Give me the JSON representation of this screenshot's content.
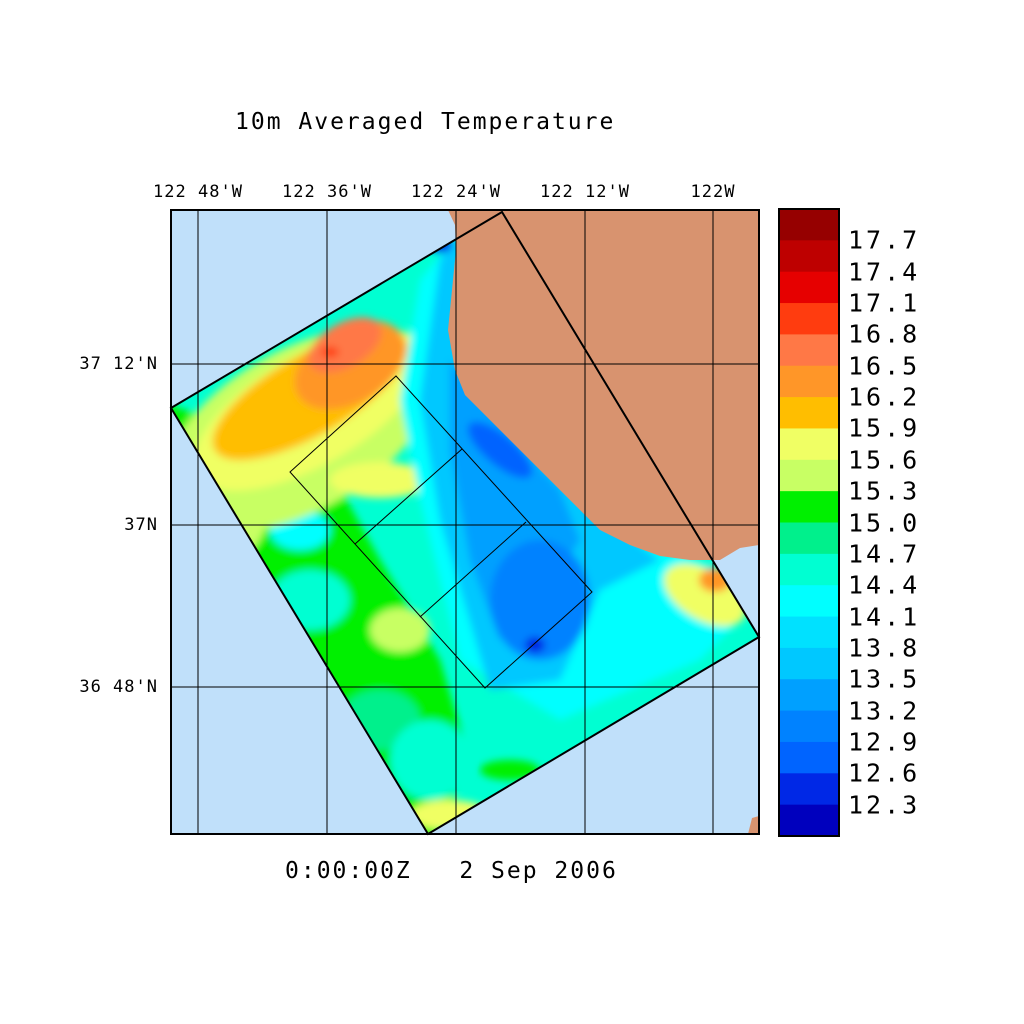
{
  "title": "10m Averaged Temperature",
  "time_label": "0:00:00Z   2 Sep 2006",
  "lon_labels": [
    "122 48'W",
    "122 36'W",
    "122 24'W",
    "122 12'W",
    "122W"
  ],
  "lat_labels": [
    "37 12'N",
    "37N",
    "36 48'N"
  ],
  "colors": {
    "ocean_outside": "#c0e0fa",
    "land": "#d8936f"
  },
  "colorbar": {
    "labels": [
      "17.7",
      "17.4",
      "17.1",
      "16.8",
      "16.5",
      "16.2",
      "15.9",
      "15.6",
      "15.3",
      "15.0",
      "14.7",
      "14.4",
      "14.1",
      "13.8",
      "13.5",
      "13.2",
      "12.9",
      "12.6",
      "12.3"
    ],
    "colors": [
      "#960000",
      "#be0000",
      "#e60000",
      "#ff3c0f",
      "#ff7846",
      "#ff9628",
      "#ffbe00",
      "#f0ff64",
      "#c8ff64",
      "#00f000",
      "#00f08c",
      "#00ffd2",
      "#00ffff",
      "#00e1ff",
      "#00c8ff",
      "#00a0ff",
      "#0082ff",
      "#0064ff",
      "#0028e6",
      "#0000be"
    ]
  },
  "chart_data": {
    "type": "heatmap",
    "title": "10m Averaged Temperature",
    "variable": "Temperature",
    "levels": [
      12.3,
      12.6,
      12.9,
      13.2,
      13.5,
      13.8,
      14.1,
      14.4,
      14.7,
      15.0,
      15.3,
      15.6,
      15.9,
      16.2,
      16.5,
      16.8,
      17.1,
      17.4,
      17.7
    ],
    "lon_ticks": [
      "122 48'W",
      "122 36'W",
      "122 24'W",
      "122 12'W",
      "122W"
    ],
    "lat_ticks": [
      "37 12'N",
      "37N",
      "36 48'N"
    ],
    "grid": true,
    "legend_placement": "right"
  }
}
